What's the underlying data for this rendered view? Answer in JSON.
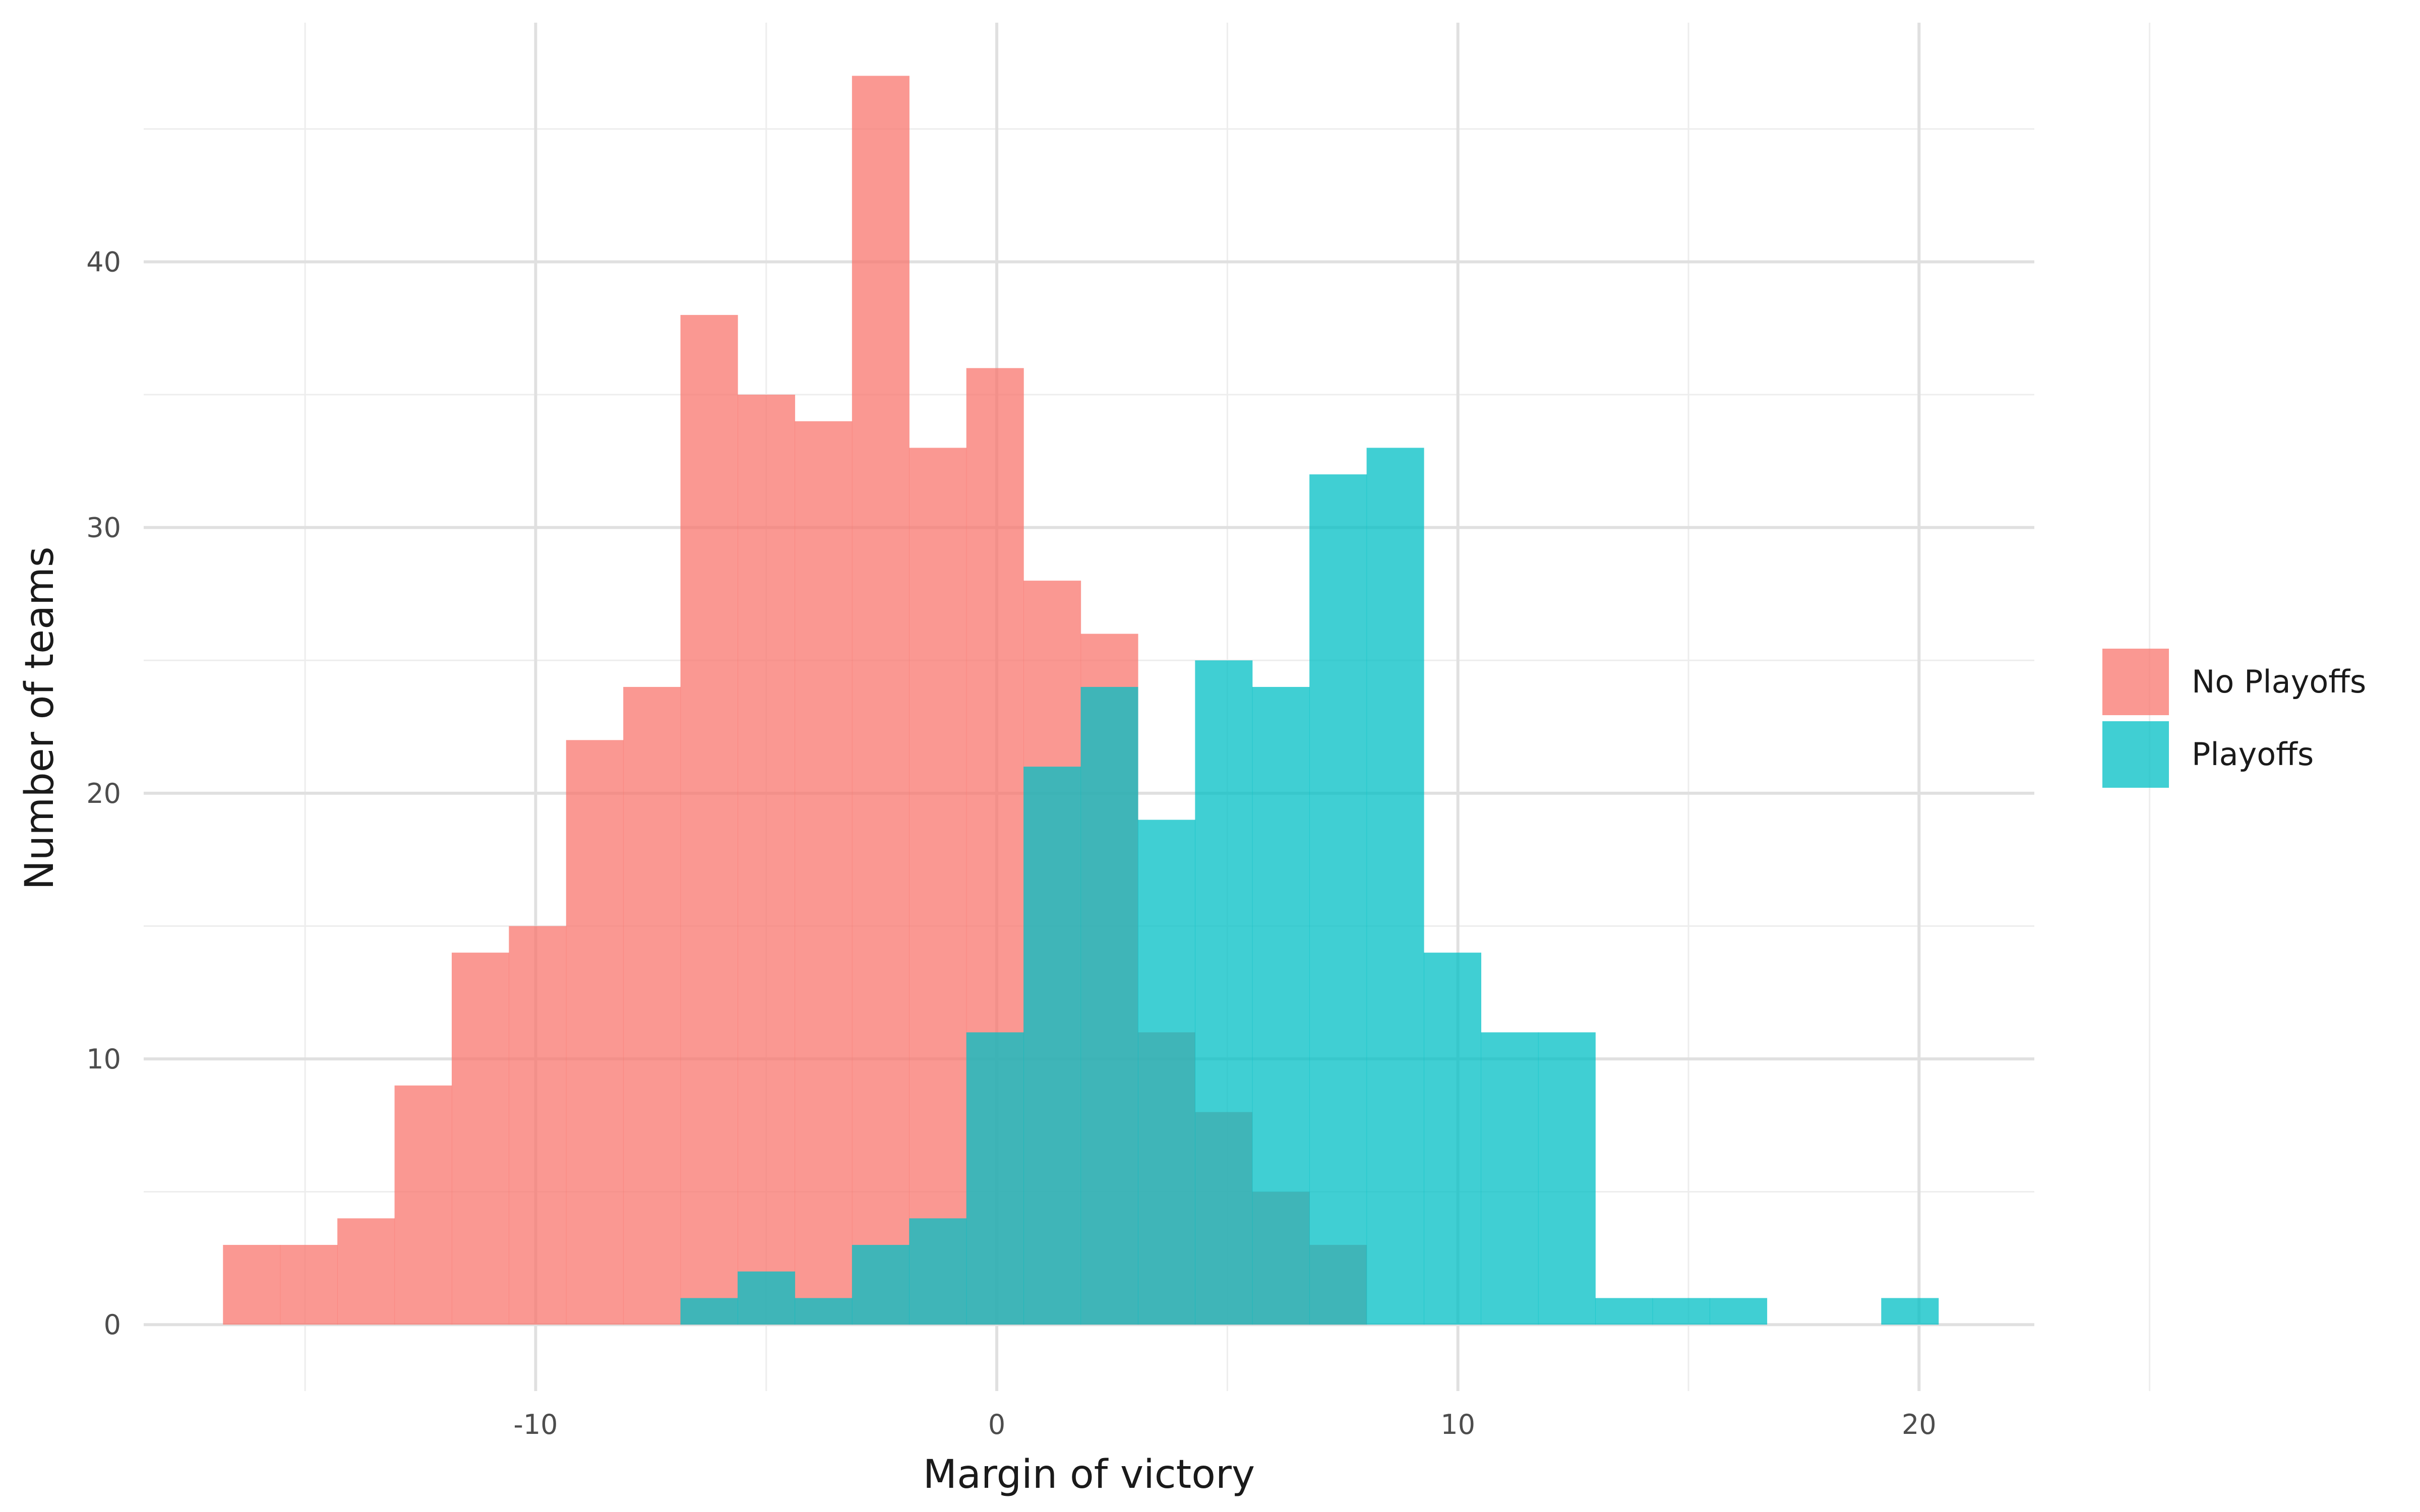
{
  "chart_data": {
    "type": "bar",
    "subtype": "histogram-overlay",
    "xlabel": "Margin of victory",
    "ylabel": "Number of teams",
    "xlim": [
      -18.5,
      22.5
    ],
    "ylim": [
      -2.5,
      49
    ],
    "x_ticks": [
      -10,
      0,
      10,
      20
    ],
    "x_tick_labels": [
      "-10",
      "0",
      "10",
      "20"
    ],
    "y_ticks": [
      0,
      10,
      20,
      30,
      40
    ],
    "y_tick_labels": [
      "0",
      "10",
      "20",
      "30",
      "40"
    ],
    "grid": true,
    "legend_position": "right",
    "bin_width": 1.24,
    "opacity": 0.75,
    "series": [
      {
        "name": "No Playoffs",
        "color": "#F8766D",
        "x": [
          -16.16,
          -14.92,
          -13.68,
          -12.44,
          -11.2,
          -9.96,
          -8.72,
          -7.48,
          -6.24,
          -5.0,
          -3.76,
          -2.52,
          -1.28,
          -0.04,
          1.2,
          2.44,
          3.68,
          4.92,
          6.16,
          7.4
        ],
        "values": [
          3,
          3,
          4,
          9,
          14,
          15,
          22,
          24,
          38,
          35,
          34,
          47,
          33,
          36,
          28,
          26,
          11,
          8,
          5,
          3
        ]
      },
      {
        "name": "Playoffs",
        "color": "#00BFC4",
        "x": [
          -6.24,
          -5.0,
          -3.76,
          -2.52,
          -1.28,
          -0.04,
          1.2,
          2.44,
          3.68,
          4.92,
          6.16,
          7.4,
          8.64,
          9.88,
          11.12,
          12.36,
          13.6,
          14.84,
          16.08,
          17.32,
          18.56,
          19.8
        ],
        "values": [
          1,
          2,
          1,
          3,
          4,
          11,
          21,
          24,
          19,
          25,
          24,
          32,
          33,
          14,
          11,
          11,
          1,
          1,
          1,
          0,
          0,
          1
        ]
      }
    ]
  }
}
